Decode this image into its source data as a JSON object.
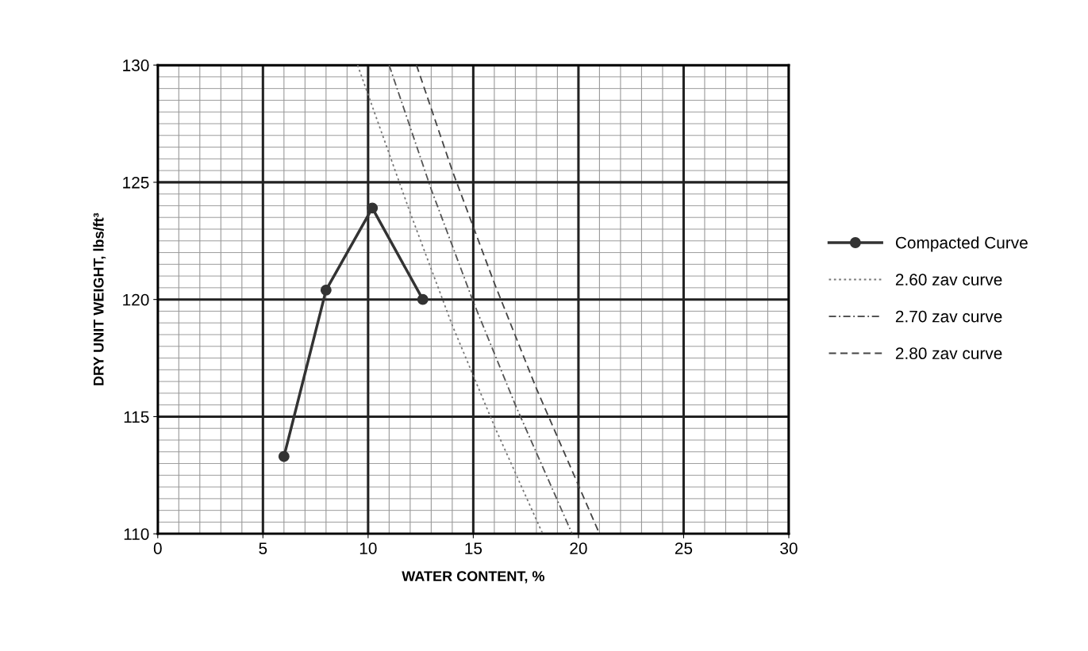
{
  "chart_data": {
    "type": "line",
    "xlabel": "WATER CONTENT, %",
    "ylabel": "DRY UNIT WEIGHT, lbs/ft³",
    "xlim": [
      0,
      30
    ],
    "ylim": [
      110,
      130
    ],
    "xticks": [
      0,
      5,
      10,
      15,
      20,
      25,
      30
    ],
    "yticks": [
      110,
      115,
      120,
      125,
      130
    ],
    "grid": true,
    "legend": "right",
    "series": [
      {
        "name": "Compacted Curve",
        "color": "#333333",
        "marker": "circle",
        "line_style": "solid",
        "x": [
          6,
          8,
          10.2,
          12.6
        ],
        "values": [
          113.3,
          120.4,
          123.9,
          120.0
        ]
      },
      {
        "name": "2.60 zav curve",
        "color": "#777777",
        "marker": "none",
        "line_style": "dotted",
        "x": [
          9.5,
          12,
          14,
          16,
          18.3
        ],
        "values": [
          130,
          123.7,
          118.9,
          114.6,
          110
        ]
      },
      {
        "name": "2.70 zav curve",
        "color": "#555555",
        "marker": "none",
        "line_style": "dashdot",
        "x": [
          11,
          13,
          15,
          17,
          19.7
        ],
        "values": [
          130,
          124.7,
          119.9,
          115.5,
          110
        ]
      },
      {
        "name": "2.80 zav curve",
        "color": "#444444",
        "marker": "none",
        "line_style": "dashed",
        "x": [
          12.3,
          14,
          16,
          18,
          21
        ],
        "values": [
          130,
          125.5,
          120.7,
          116.2,
          110
        ]
      }
    ]
  }
}
